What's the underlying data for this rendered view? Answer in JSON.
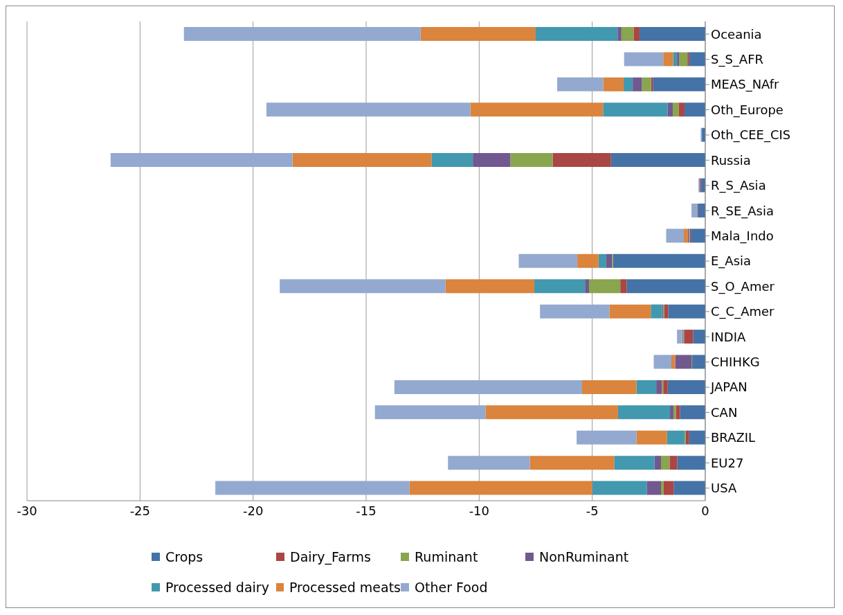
{
  "chart_data": {
    "type": "bar",
    "orientation": "horizontal",
    "stacked": true,
    "categories": [
      "Oceania",
      "S_S_AFR",
      "MEAS_NAfr",
      "Oth_Europe",
      "Oth_CEE_CIS",
      "Russia",
      "R_S_Asia",
      "R_SE_Asia",
      "Mala_Indo",
      "E_Asia",
      "S_O_Amer",
      "C_C_Amer",
      "INDIA",
      "CHIHKG",
      "JAPAN",
      "CAN",
      "BRAZIL",
      "EU27",
      "USA"
    ],
    "series": [
      {
        "name": "Crops",
        "color": "#4572a7",
        "values": [
          -2.91,
          -0.71,
          -2.32,
          -0.92,
          -0.15,
          -4.17,
          -0.2,
          -0.31,
          -0.64,
          -4.08,
          -3.48,
          -1.64,
          -0.54,
          -0.58,
          -1.66,
          -1.12,
          -0.71,
          -1.24,
          -1.4
        ]
      },
      {
        "name": "Dairy_Farms",
        "color": "#aa4643",
        "values": [
          -0.26,
          -0.08,
          -0.08,
          -0.26,
          0,
          -2.58,
          -0.05,
          -0.03,
          -0.05,
          0,
          -0.28,
          -0.17,
          -0.4,
          0,
          -0.2,
          -0.18,
          -0.15,
          -0.34,
          -0.44
        ]
      },
      {
        "name": "Ruminant",
        "color": "#89a54e",
        "values": [
          -0.54,
          -0.37,
          -0.4,
          -0.26,
          0,
          -1.87,
          0,
          0,
          -0.03,
          -0.05,
          -1.38,
          -0.05,
          -0.03,
          -0.03,
          -0.06,
          -0.11,
          -0.05,
          -0.38,
          -0.12
        ]
      },
      {
        "name": "NonRuminant",
        "color": "#71588f",
        "values": [
          -0.17,
          -0.09,
          -0.41,
          -0.23,
          0,
          -1.66,
          0,
          0,
          -0.05,
          -0.25,
          -0.18,
          -0.05,
          -0.03,
          -0.72,
          -0.25,
          -0.15,
          0,
          -0.29,
          -0.63
        ]
      },
      {
        "name": "Processed dairy",
        "color": "#4198af",
        "values": [
          -3.62,
          -0.17,
          -0.4,
          -2.85,
          0,
          -1.83,
          0,
          -0.02,
          0,
          -0.34,
          -2.24,
          -0.5,
          -0.03,
          0,
          -0.87,
          -2.3,
          -0.78,
          -1.78,
          -2.41
        ]
      },
      {
        "name": "Processed meats",
        "color": "#db843d",
        "values": [
          -5.09,
          -0.44,
          -0.9,
          -5.87,
          0,
          -6.15,
          0,
          0,
          -0.18,
          -0.94,
          -3.93,
          -1.83,
          -0.02,
          -0.17,
          -2.41,
          -5.86,
          -1.35,
          -3.73,
          -8.08
        ]
      },
      {
        "name": "Other Food",
        "color": "#93a9cf",
        "values": [
          -10.47,
          -1.73,
          -2.04,
          -9.02,
          -0.05,
          -8.04,
          -0.05,
          -0.25,
          -0.78,
          -2.59,
          -7.33,
          -3.07,
          -0.2,
          -0.78,
          -8.3,
          -4.89,
          -2.65,
          -3.62,
          -8.59
        ]
      }
    ],
    "xlim": [
      -30,
      0
    ],
    "xticks": [
      -30,
      -25,
      -20,
      -15,
      -10,
      -5,
      0
    ],
    "grid": "x",
    "legend": "bottom"
  }
}
